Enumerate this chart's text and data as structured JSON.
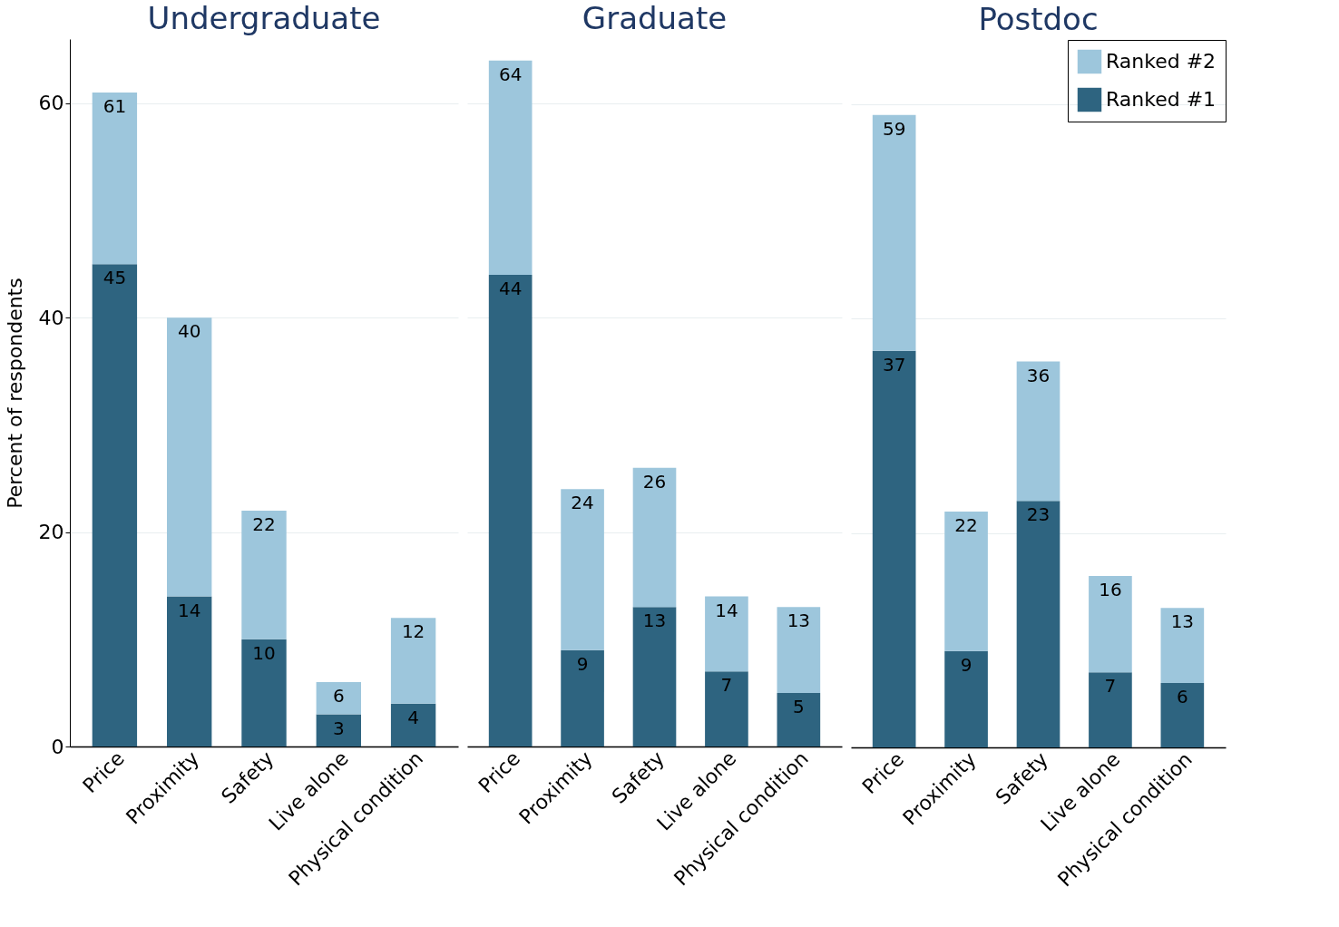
{
  "chart_data": [
    {
      "type": "bar",
      "title": "Undergraduate",
      "ylabel": "Percent of respondents",
      "categories": [
        "Price",
        "Proximity",
        "Safety",
        "Live alone",
        "Physical condition"
      ],
      "stacked": true,
      "ylim": [
        0,
        66
      ],
      "yticks": [
        0,
        20,
        40,
        60
      ],
      "grid": "y",
      "legend": false,
      "totals": [
        "61",
        "40",
        "22",
        "6",
        "12"
      ],
      "series": [
        {
          "color": "#2e6480",
          "values": [
            45,
            14,
            10,
            3,
            4
          ],
          "value_labels": [
            "45",
            "14",
            "10",
            "3",
            "4"
          ]
        },
        {
          "color": "#9dc6dc",
          "values": [
            16,
            26,
            12,
            3,
            8
          ]
        }
      ]
    },
    {
      "type": "bar",
      "title": "Graduate",
      "categories": [
        "Price",
        "Proximity",
        "Safety",
        "Live alone",
        "Physical condition"
      ],
      "stacked": true,
      "yticks": [
        0,
        20,
        40,
        60
      ],
      "grid": "y",
      "legend": false,
      "tick_labels": "x",
      "totals": [
        "64",
        "24",
        "26",
        "14",
        "13"
      ],
      "series": [
        {
          "color": "#2e6480",
          "values": [
            44,
            9,
            13,
            7,
            5
          ],
          "value_labels": [
            "44",
            "9",
            "13",
            "7",
            "5"
          ]
        },
        {
          "color": "#9dc6dc",
          "values": [
            20,
            15,
            13,
            7,
            8
          ]
        }
      ]
    },
    {
      "type": "bar",
      "title": "Postdoc",
      "categories": [
        "Price",
        "Proximity",
        "Safety",
        "Live alone",
        "Physical condition"
      ],
      "stacked": true,
      "yticks": [
        0,
        20,
        40,
        60
      ],
      "grid": "y",
      "legend": "top right",
      "tick_labels": "x",
      "totals": [
        "59",
        "22",
        "36",
        "16",
        "13"
      ],
      "series": [
        {
          "name": "Ranked #1",
          "color": "#2e6480",
          "values": [
            37,
            9,
            23,
            7,
            6
          ],
          "value_labels": [
            "37",
            "9",
            "23",
            "7",
            "6"
          ]
        },
        {
          "name": "Ranked #2",
          "color": "#9dc6dc",
          "values": [
            22,
            13,
            13,
            9,
            7
          ]
        }
      ]
    }
  ]
}
